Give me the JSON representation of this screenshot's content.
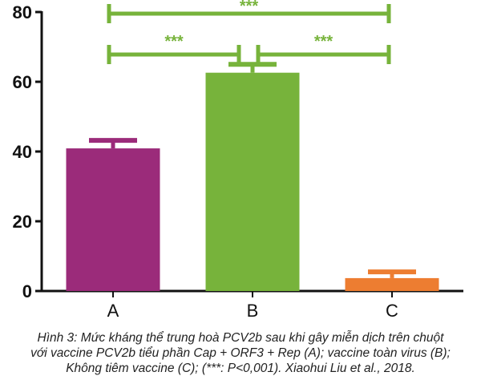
{
  "chart_data": {
    "type": "bar",
    "categories": [
      "A",
      "B",
      "C"
    ],
    "values": [
      40.9,
      62.6,
      3.7
    ],
    "error_upper": [
      43.2,
      65.0,
      5.5
    ],
    "colors": [
      "#9b2b7a",
      "#77b33b",
      "#ed7d31"
    ],
    "ylim": [
      0,
      80
    ],
    "yticks": [
      0,
      20,
      40,
      60,
      80
    ],
    "grid": false,
    "significance": [
      {
        "from": "A",
        "to": "C",
        "label": "***"
      },
      {
        "from": "A",
        "to": "B",
        "label": "***"
      },
      {
        "from": "B",
        "to": "C",
        "label": "***"
      }
    ],
    "significance_color": "#77b33b"
  },
  "caption": {
    "line1": "Hình 3: Mức kháng thể trung hoà PCV2b sau khi gây miễn dịch trên chuột",
    "line2": "với vaccine PCV2b tiểu phần Cap + ORF3 + Rep (A); vaccine toàn virus (B);",
    "line3": "Không tiêm vaccine (C); (***: P<0,001). Xiaohui Liu et al., 2018."
  }
}
